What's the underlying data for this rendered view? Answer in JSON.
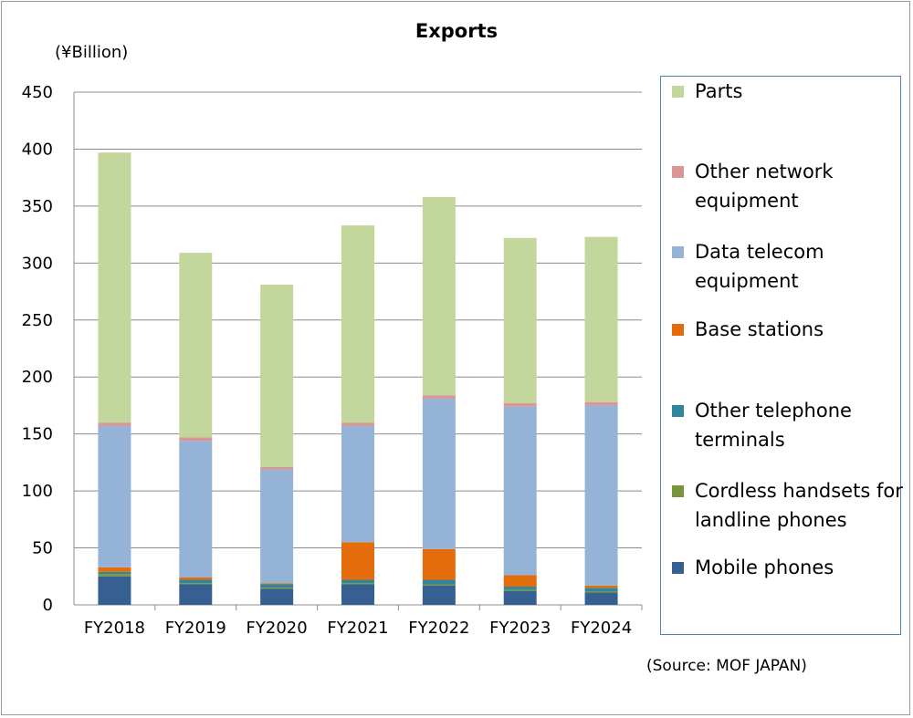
{
  "chart_data": {
    "type": "bar",
    "stacked": true,
    "title": "Exports",
    "unit_label": "(¥Billion)",
    "source": "(Source: MOF JAPAN)",
    "categories": [
      "FY2018",
      "FY2019",
      "FY2020",
      "FY2021",
      "FY2022",
      "FY2023",
      "FY2024"
    ],
    "ylim": [
      0,
      450
    ],
    "yticks": [
      0,
      50,
      100,
      150,
      200,
      250,
      300,
      350,
      400,
      450
    ],
    "grid": true,
    "legend_position": "right",
    "series": [
      {
        "name": "Mobile phones",
        "color": "#376092",
        "values": [
          25,
          18,
          14,
          18,
          17,
          12,
          11
        ]
      },
      {
        "name": "Cordless handsets for landline phones",
        "color": "#77933c",
        "values": [
          2,
          1,
          1,
          1,
          1,
          1,
          1
        ]
      },
      {
        "name": "Other telephone terminals",
        "color": "#31859c",
        "values": [
          2,
          3,
          3,
          3,
          4,
          3,
          3
        ]
      },
      {
        "name": "Base stations",
        "color": "#e46c0a",
        "values": [
          4,
          2,
          1,
          33,
          27,
          10,
          2
        ]
      },
      {
        "name": "Data telecom equipment",
        "color": "#95b3d7",
        "values": [
          124,
          120,
          100,
          102,
          132,
          148,
          158
        ]
      },
      {
        "name": "Other network equipment",
        "color": "#d99694",
        "values": [
          3,
          3,
          2,
          3,
          3,
          3,
          3
        ]
      },
      {
        "name": "Parts",
        "color": "#c3d69b",
        "values": [
          237,
          162,
          160,
          173,
          174,
          145,
          145
        ]
      }
    ]
  }
}
